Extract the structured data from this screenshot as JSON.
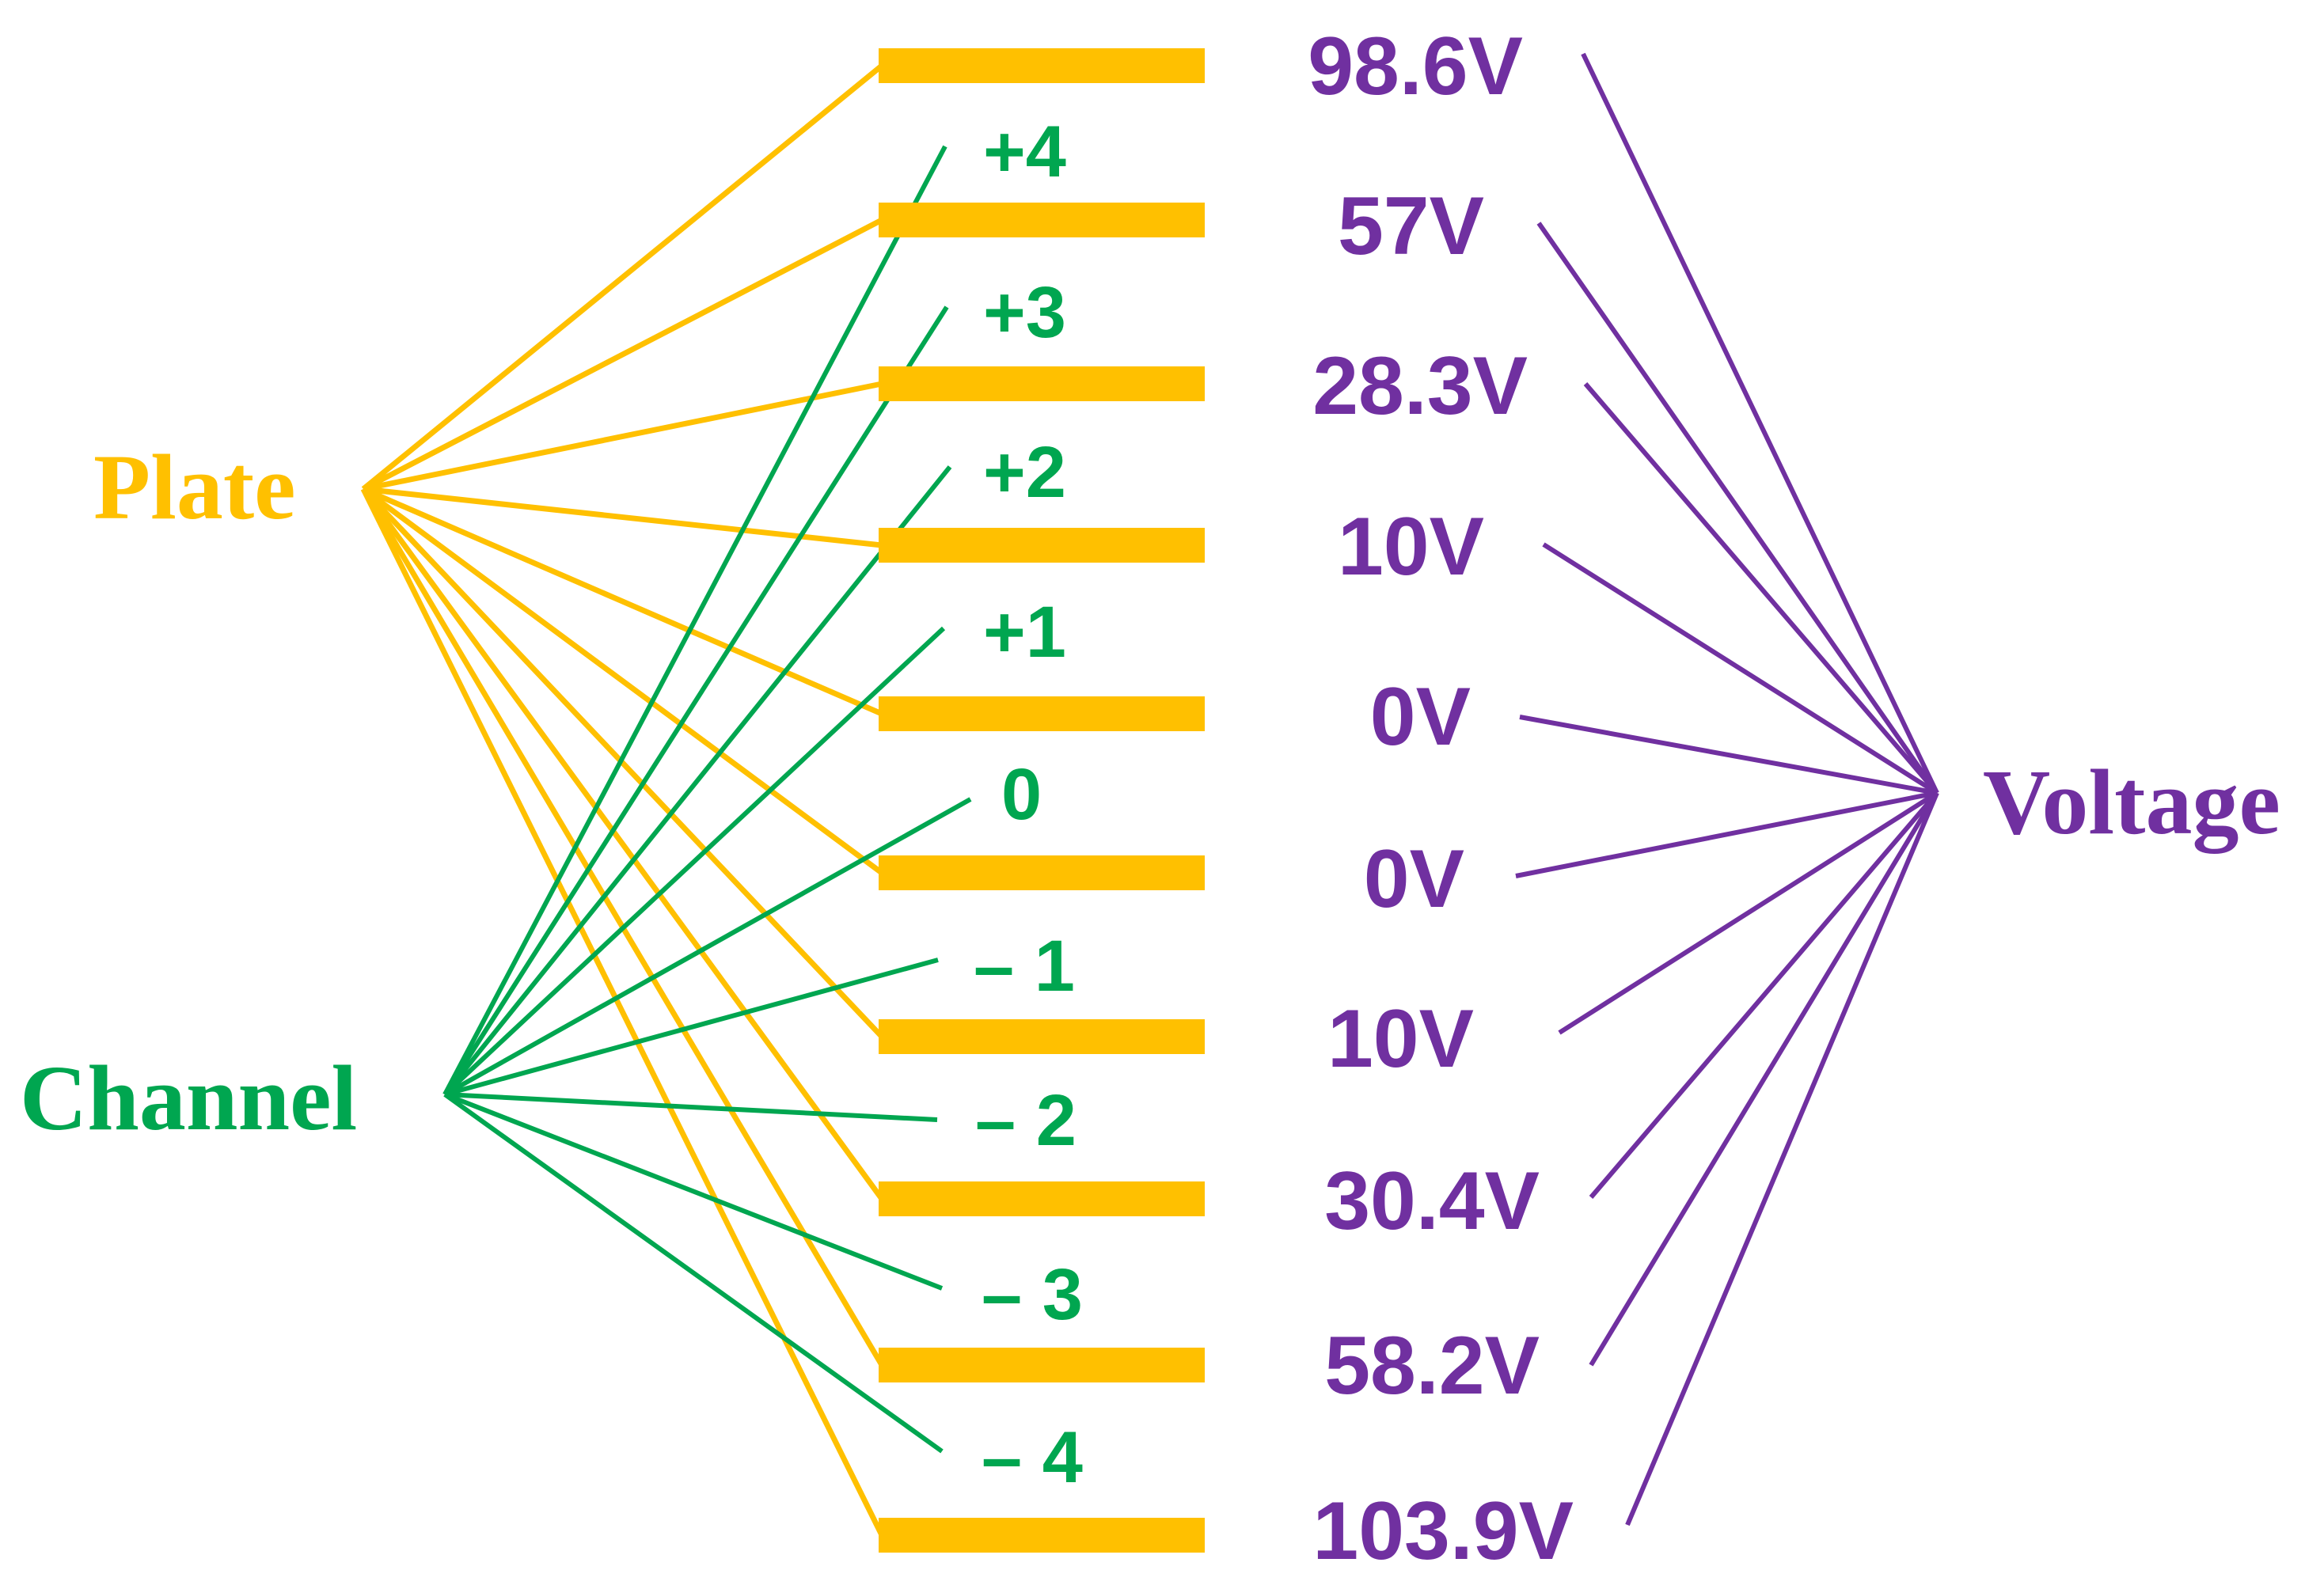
{
  "colors": {
    "plate": "#FFC000",
    "channel": "#00A650",
    "voltage": "#7030A0",
    "background": "#FFFFFF"
  },
  "labels": {
    "plate": "Plate",
    "channel": "Channel",
    "voltage": "Voltage"
  },
  "channels": [
    "+4",
    "+3",
    "+2",
    "+1",
    "0",
    "– 1",
    "– 2",
    "– 3",
    "– 4"
  ],
  "voltages": [
    "98.6V",
    "57V",
    "28.3V",
    "10V",
    "0V",
    "0V",
    "10V",
    "30.4V",
    "58.2V",
    "103.9V"
  ],
  "plate_count": 10
}
